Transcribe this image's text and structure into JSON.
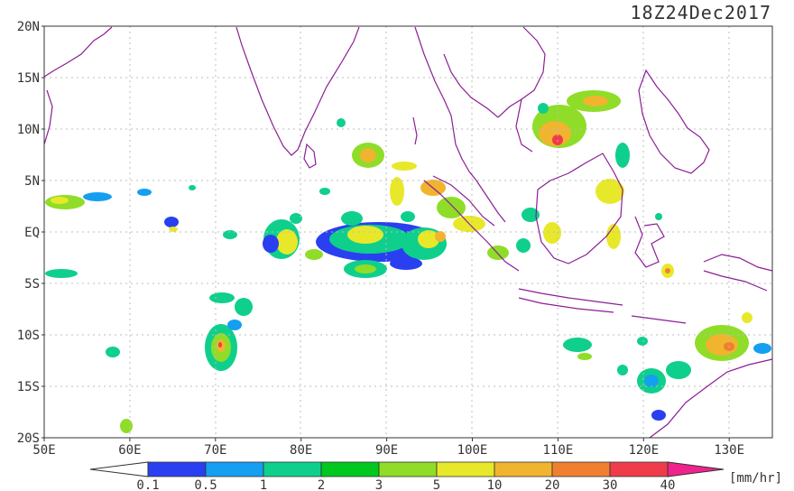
{
  "title": "18Z24Dec2017",
  "units": "[mm/hr]",
  "lon_labels": [
    "50E",
    "60E",
    "70E",
    "80E",
    "90E",
    "100E",
    "110E",
    "120E",
    "130E"
  ],
  "lat_labels": [
    "20N",
    "15N",
    "10N",
    "5N",
    "EQ",
    "5S",
    "10S",
    "15S",
    "20S"
  ],
  "colorbar": {
    "ticks": [
      "0.1",
      "0.5",
      "1",
      "2",
      "3",
      "5",
      "10",
      "20",
      "30",
      "40"
    ],
    "colors": [
      "#2a3ff0",
      "#159ff0",
      "#0fcf8c",
      "#00c81e",
      "#8fdd28",
      "#e8e82a",
      "#f0b42e",
      "#f08030",
      "#f03c4a"
    ],
    "under_color": "#ffffff",
    "over_color": "#f0238c"
  },
  "map": {
    "lon_range": [
      50,
      135
    ],
    "lat_range": [
      -20,
      20
    ],
    "coastline_color": "#8c1e96",
    "gridlines": "dotted"
  }
}
